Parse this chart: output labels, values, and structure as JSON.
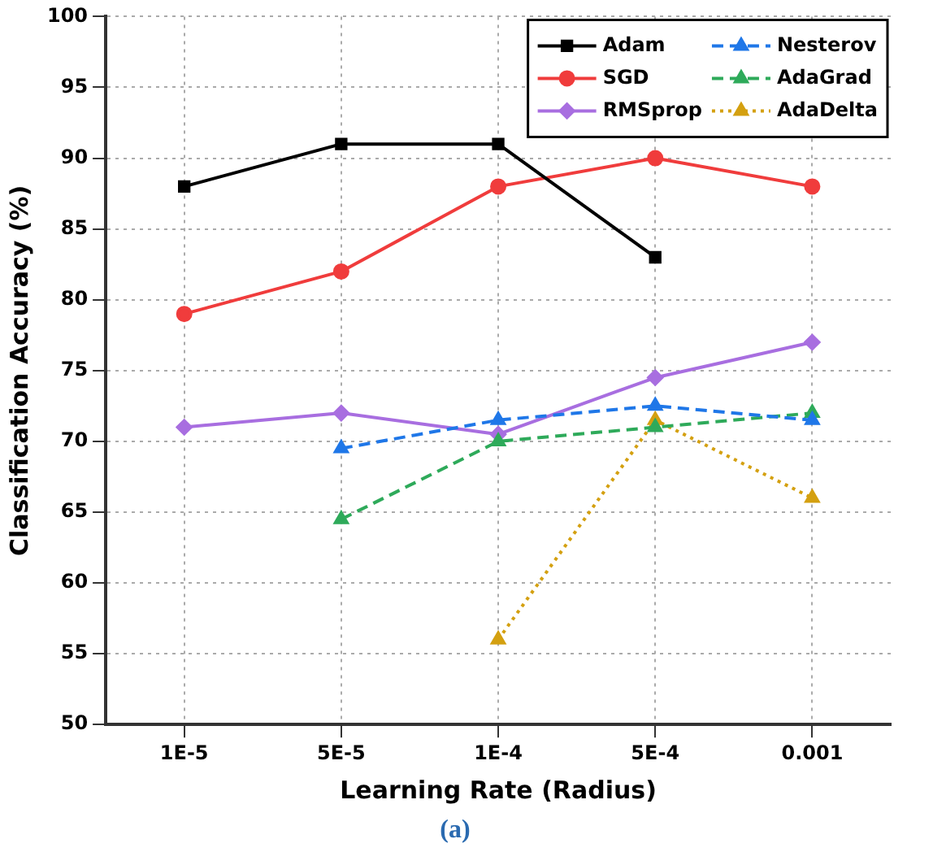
{
  "chart_data": {
    "type": "line",
    "xlabel": "Learning Rate (Radius)",
    "ylabel": "Classification Accuracy (%)",
    "categories": [
      "1E-5",
      "5E-5",
      "1E-4",
      "5E-4",
      "0.001"
    ],
    "series": [
      {
        "name": "Adam",
        "color": "#000000",
        "marker": "square",
        "line_style": "solid",
        "values": [
          88,
          91,
          91,
          83,
          null
        ]
      },
      {
        "name": "Nesterov",
        "color": "#1f77e8",
        "marker": "triangle",
        "line_style": "dashed",
        "values": [
          null,
          69.5,
          71.5,
          72.5,
          71.5
        ]
      },
      {
        "name": "SGD",
        "color": "#f03c3c",
        "marker": "circle",
        "line_style": "solid",
        "values": [
          79,
          82,
          88,
          90,
          88
        ]
      },
      {
        "name": "AdaGrad",
        "color": "#2eaa5a",
        "marker": "triangle",
        "line_style": "dashed",
        "values": [
          null,
          64.5,
          70,
          71,
          72
        ]
      },
      {
        "name": "RMSprop",
        "color": "#a86ee0",
        "marker": "diamond",
        "line_style": "solid",
        "values": [
          71,
          72,
          70.5,
          74.5,
          77
        ]
      },
      {
        "name": "AdaDelta",
        "color": "#d4a010",
        "marker": "triangle",
        "line_style": "dotted",
        "values": [
          null,
          null,
          56,
          71.5,
          66
        ]
      }
    ],
    "ylim": [
      50,
      100
    ],
    "yticks": [
      50,
      55,
      60,
      65,
      70,
      75,
      80,
      85,
      90,
      95,
      100
    ],
    "grid": true,
    "legend": "top right",
    "annotations": [
      "(a)"
    ]
  }
}
